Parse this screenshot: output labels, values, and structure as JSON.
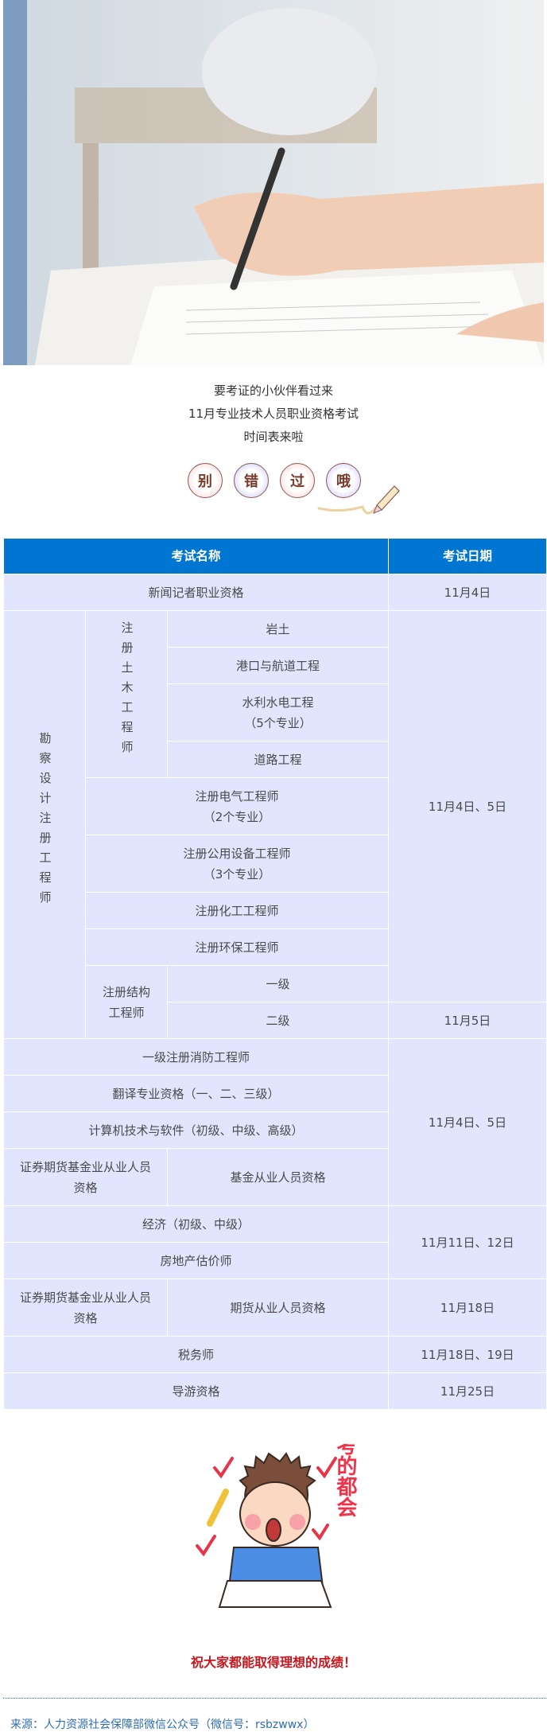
{
  "intro": {
    "lines": [
      "要考证的小伙伴看过来",
      "11月专业技术人员职业资格考试",
      "时间表来啦"
    ],
    "badges": [
      "别",
      "错",
      "过",
      "哦"
    ]
  },
  "table": {
    "headers": [
      "考试名称",
      "考试日期"
    ],
    "r1": {
      "name": "新闻记者职业资格",
      "date": "11月4日"
    },
    "kancha": "勘察设计注册工程师",
    "tumu": "注册土木工程师",
    "yantu": "岩土",
    "gangkou": "港口与航道工程",
    "shuili": [
      "水利水电工程",
      "（5个专业）"
    ],
    "daolu": "道路工程",
    "dianqi": [
      "注册电气工程师",
      "（2个专业）"
    ],
    "gongyong": [
      "注册公用设备工程师",
      "（3个专业）"
    ],
    "huagong": "注册化工工程师",
    "huanbao": "注册环保工程师",
    "jiegou": [
      "注册结构",
      "工程师"
    ],
    "yiji": "一级",
    "erji": "二级",
    "date_4_5": "11月4日、5日",
    "date_5": "11月5日",
    "xiaofang": "一级注册消防工程师",
    "fanyi": "翻译专业资格（一、二、三级）",
    "jisuanji": "计算机技术与软件（初级、中级、高级）",
    "zhengquan": [
      "证券期货基金业从业人员",
      "资格"
    ],
    "jijin": "基金从业人员资格",
    "date_4_5b": "11月4日、5日",
    "jingji": "经济（初级、中级）",
    "fangdichan": "房地产估价师",
    "date_11_12": "11月11日、12日",
    "zhengquan2": [
      "证券期货基金业从业人员",
      "资格"
    ],
    "qihuo": "期货从业人员资格",
    "date_18": "11月18日",
    "shuiwu": "税务师",
    "date_18_19": "11月18日、19日",
    "daoyou": "导游资格",
    "date_25": "11月25日"
  },
  "sticker": {
    "text": "考的都会"
  },
  "wish": "祝大家都能取得理想的成绩！",
  "source": "来源：人力资源社会保障部微信公众号（微信号：rsbzwwx）",
  "colors": {
    "header": "#0075d1",
    "cell": "#e1e6fe",
    "wish": "#c8161d",
    "source": "#2f6db0"
  }
}
